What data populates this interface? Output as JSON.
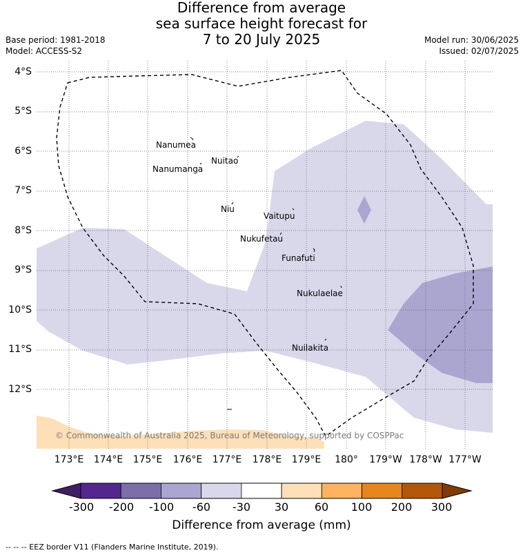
{
  "title": {
    "line1": "Difference from average",
    "line2": "sea surface height forecast for",
    "line3": "7 to 20 July 2025"
  },
  "meta": {
    "base_period": "Base period: 1981-2018",
    "model": "Model: ACCESS-S2",
    "model_run": "Model run: 30/06/2025",
    "issued": "Issued: 02/07/2025"
  },
  "axes": {
    "lat_labels": [
      "4°S",
      "5°S",
      "6°S",
      "7°S",
      "8°S",
      "9°S",
      "10°S",
      "11°S",
      "12°S"
    ],
    "lon_labels": [
      "173°E",
      "174°E",
      "175°E",
      "176°E",
      "177°E",
      "178°E",
      "179°E",
      "180°",
      "179°W",
      "178°W",
      "177°W"
    ],
    "grid": "dotted"
  },
  "places": [
    {
      "name": "Nanumea"
    },
    {
      "name": "Nuitao"
    },
    {
      "name": "Nanumanga"
    },
    {
      "name": "Niu"
    },
    {
      "name": "Vaitupu"
    },
    {
      "name": "Nukufetau"
    },
    {
      "name": "Funafuti"
    },
    {
      "name": "Nukulaelae"
    },
    {
      "name": "Nuilakita"
    }
  ],
  "copyright": "© Commonwealth of Australia 2025, Bureau of Meteorology, supported by COSPPac",
  "colorbar": {
    "title": "Difference from average (mm)",
    "ticks": [
      "-300",
      "-200",
      "-100",
      "-60",
      "-30",
      "30",
      "60",
      "100",
      "200",
      "300"
    ],
    "colors": [
      "#3f1f63",
      "#54278f",
      "#7c6ea9",
      "#aba6d0",
      "#d8d8ea",
      "#ffffff",
      "#fde0b8",
      "#fdb35f",
      "#e6851b",
      "#b25709",
      "#7f3b08"
    ]
  },
  "map_colors": {
    "light_purple": "#d8d8ea",
    "mid_purple": "#aba6d0",
    "light_orange": "#fde0b8"
  },
  "legend_note": "--  --  -- EEZ border V11 (Flanders Marine Institute, 2019)."
}
